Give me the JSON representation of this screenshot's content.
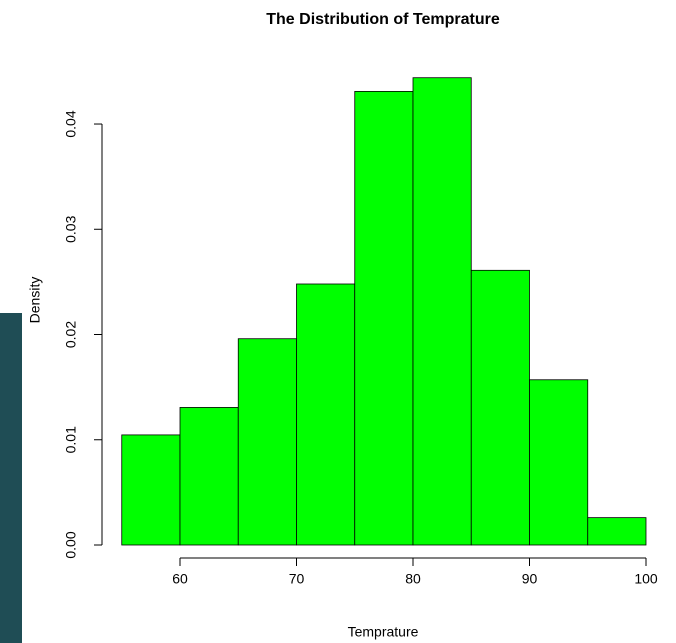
{
  "chart_data": {
    "type": "histogram",
    "title": "The Distribution of Temprature",
    "x_label": "Temprature",
    "y_label": "Density",
    "bins": [
      55,
      60,
      65,
      70,
      75,
      80,
      85,
      90,
      95,
      100
    ],
    "values": [
      0.01046,
      0.01307,
      0.0196,
      0.0248,
      0.0431,
      0.0444,
      0.0261,
      0.0157,
      0.0026
    ],
    "color": "#00ff00",
    "xlim": [
      55,
      100
    ],
    "xticks": [
      60,
      70,
      80,
      90,
      100
    ],
    "ylim": [
      0,
      0.045
    ],
    "yticks": [
      {
        "value": 0,
        "label": "0.00"
      },
      0.01,
      0.02,
      0.03,
      0.04
    ]
  }
}
